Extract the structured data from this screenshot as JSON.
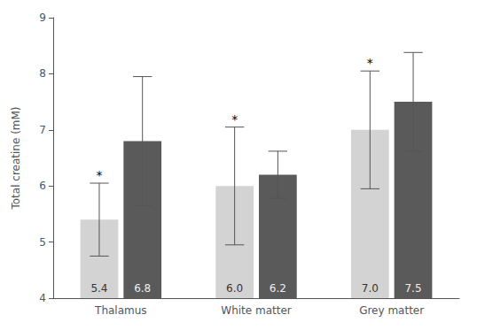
{
  "chart_data": {
    "type": "bar",
    "categories": [
      "Thalamus",
      "White matter",
      "Grey matter"
    ],
    "ylabel": "Total creatine (mM)",
    "ylim": [
      4,
      9
    ],
    "yticks": [
      4,
      5,
      6,
      7,
      8,
      9
    ],
    "grid": false,
    "data_labels": true,
    "series": [
      {
        "color": "#d3d3d3",
        "values": [
          5.4,
          6.0,
          7.0
        ],
        "value_labels": [
          "5.4",
          "6.0",
          "7.0"
        ],
        "errors": [
          0.65,
          1.05,
          1.05
        ],
        "annotations": [
          "*",
          "*",
          "*"
        ]
      },
      {
        "color": "#5a5a5a",
        "values": [
          6.8,
          6.2,
          7.5
        ],
        "value_labels": [
          "6.8",
          "6.2",
          "7.5"
        ],
        "errors": [
          1.15,
          0.42,
          0.88
        ]
      }
    ]
  }
}
